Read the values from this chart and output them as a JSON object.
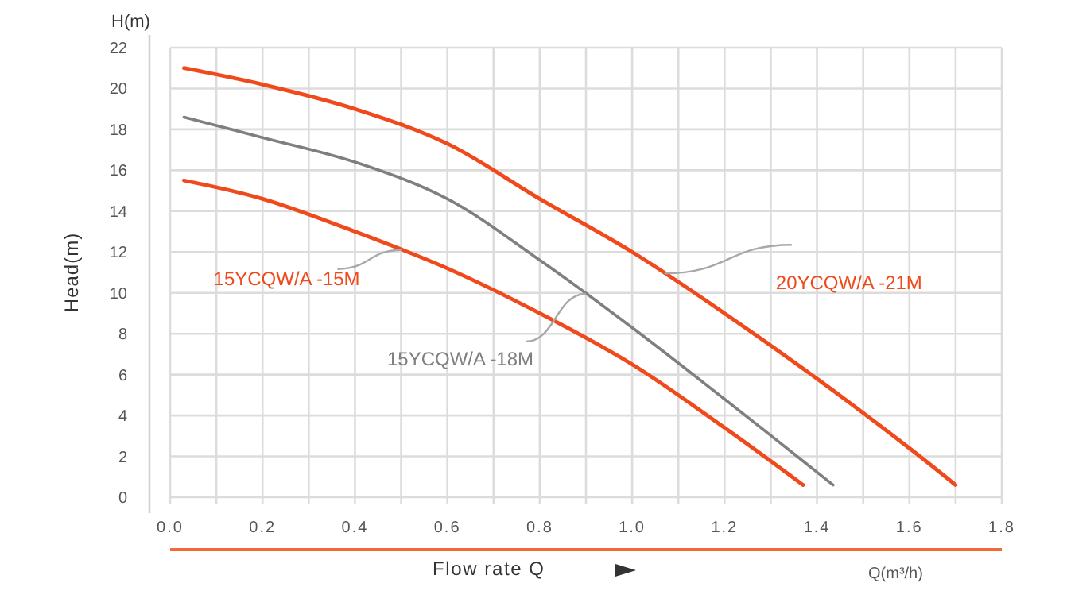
{
  "chart_data": {
    "type": "line",
    "xlabel": "Flow rate Q",
    "ylabel": "Head(m)",
    "annotations": [
      "H(m)",
      "Q(m³/h)"
    ],
    "xlim": [
      0,
      1.8
    ],
    "ylim": [
      0,
      22
    ],
    "xticks": [
      {
        "value": 0,
        "label": "0.0"
      },
      {
        "value": 0.1,
        "label": null
      },
      {
        "value": 0.2,
        "label": "0.2"
      },
      {
        "value": 0.3,
        "label": null
      },
      {
        "value": 0.4,
        "label": "0.4"
      },
      {
        "value": 0.5,
        "label": null
      },
      {
        "value": 0.6,
        "label": "0.6"
      },
      {
        "value": 0.7,
        "label": null
      },
      {
        "value": 0.8,
        "label": "0.8"
      },
      {
        "value": 0.9,
        "label": null
      },
      {
        "value": 1,
        "label": "1.0"
      },
      {
        "value": 1.1,
        "label": null
      },
      {
        "value": 1.2,
        "label": "1.2"
      },
      {
        "value": 1.3,
        "label": null
      },
      {
        "value": 1.4,
        "label": "1.4"
      },
      {
        "value": 1.5,
        "label": null
      },
      {
        "value": 1.6,
        "label": "1.6"
      },
      {
        "value": 1.7,
        "label": null
      },
      {
        "value": 1.8,
        "label": "1.8"
      }
    ],
    "yticks": [
      0,
      2,
      4,
      6,
      8,
      10,
      12,
      14,
      16,
      18,
      20,
      22
    ],
    "grid": true,
    "series": [
      {
        "name": "15YCQW/A -15M",
        "color": "#f04a1c",
        "x": [
          0.03,
          0.2,
          0.4,
          0.6,
          0.8,
          1.0,
          1.2,
          1.37
        ],
        "values": [
          15.5,
          14.6,
          13.0,
          11.2,
          9.0,
          6.5,
          3.4,
          0.6
        ]
      },
      {
        "name": "15YCQW/A -18M",
        "color": "#7f7f7f",
        "x": [
          0.03,
          0.2,
          0.4,
          0.6,
          0.8,
          1.0,
          1.2,
          1.435
        ],
        "values": [
          18.6,
          17.6,
          16.4,
          14.6,
          11.6,
          8.3,
          4.8,
          0.6
        ]
      },
      {
        "name": "20YCQW/A -21M",
        "color": "#f04a1c",
        "x": [
          0.03,
          0.2,
          0.4,
          0.6,
          0.8,
          1.0,
          1.2,
          1.4,
          1.6,
          1.7
        ],
        "values": [
          21.0,
          20.2,
          19.0,
          17.3,
          14.6,
          12.0,
          9.0,
          5.8,
          2.4,
          0.6
        ]
      }
    ]
  }
}
